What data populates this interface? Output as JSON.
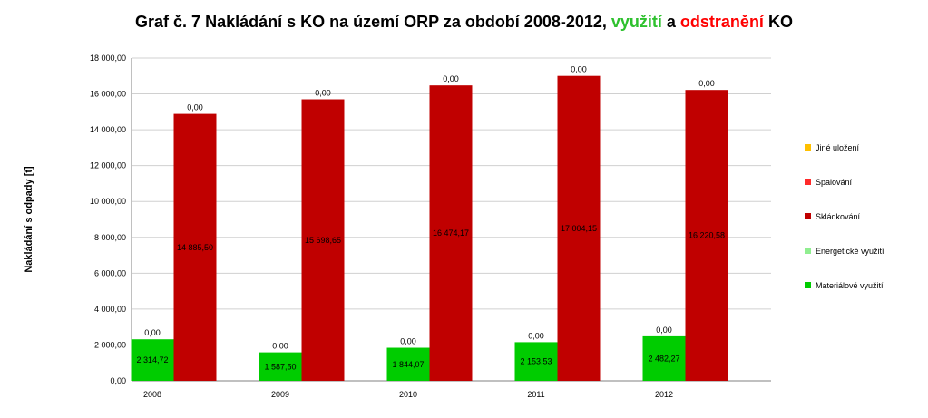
{
  "chart_data": {
    "type": "bar",
    "title": {
      "prefix": "Graf č. 7 Nakládání s KO na území ORP za období 2008-2012, ",
      "part_green": "využití",
      "middle": " a ",
      "part_red": "odstranění",
      "suffix": " KO"
    },
    "ylabel": "Nakládání s odpady [t]",
    "ylim": [
      0,
      18000
    ],
    "yticks": [
      "0,00",
      "2 000,00",
      "4 000,00",
      "6 000,00",
      "8 000,00",
      "10 000,00",
      "12 000,00",
      "14 000,00",
      "16 000,00",
      "18 000,00"
    ],
    "categories": [
      "2008",
      "2009",
      "2010",
      "2011",
      "2012"
    ],
    "stacks": [
      {
        "name": "využití",
        "series": [
          {
            "name": "Materiálové využití",
            "color": "#00cc00",
            "values": [
              2314.72,
              1587.5,
              1844.07,
              2153.53,
              2482.27
            ],
            "labels": [
              "2 314,72",
              "1 587,50",
              "1 844,07",
              "2 153,53",
              "2 482,27"
            ]
          },
          {
            "name": "Energetické využití",
            "color": "#90ee90",
            "values": [
              0,
              0,
              0,
              0,
              0
            ],
            "labels": [
              "0,00",
              "0,00",
              "0,00",
              "0,00",
              "0,00"
            ]
          }
        ]
      },
      {
        "name": "odstranění",
        "series": [
          {
            "name": "Skládkování",
            "color": "#c00000",
            "values": [
              14885.5,
              15698.65,
              16474.17,
              17004.15,
              16220.58
            ],
            "labels": [
              "14 885,50",
              "15 698,65",
              "16 474,17",
              "17 004,15",
              "16 220,58"
            ]
          },
          {
            "name": "Spalování",
            "color": "#ff2a2a",
            "values": [
              0,
              0,
              0,
              0,
              0
            ],
            "labels": [
              "0,00",
              "0,00",
              "0,00",
              "0,00",
              "0,00"
            ]
          }
        ]
      }
    ],
    "legend": [
      {
        "name": "Jiné uložení",
        "color": "#ffc000"
      },
      {
        "name": "Spalování",
        "color": "#ff2a2a"
      },
      {
        "name": "Skládkování",
        "color": "#c00000"
      },
      {
        "name": "Energetické využití",
        "color": "#90ee90"
      },
      {
        "name": "Materiálové využití",
        "color": "#00cc00"
      }
    ],
    "legend_position": "right",
    "grid": true
  }
}
